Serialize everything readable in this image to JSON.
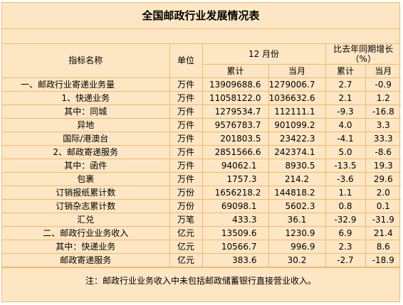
{
  "title": "全国邮政行业发展情况表",
  "headers": {
    "indicator": "指标名称",
    "unit": "单位",
    "month_group": "12 月份",
    "yoy_group": "比去年同期增长（%）",
    "cumulative": "累计",
    "current_month": "当月",
    "yoy_cumulative": "累计",
    "yoy_current_month": "当月"
  },
  "rows": [
    {
      "name": "一、邮政行业寄递业务量",
      "unit": "万件",
      "cumulative": "13909688.6",
      "month": "1279006.7",
      "yoy_cum": "2.7",
      "yoy_month": "-0.9"
    },
    {
      "name": "1、快递业务",
      "unit": "万件",
      "cumulative": "11058122.0",
      "month": "1036632.6",
      "yoy_cum": "2.1",
      "yoy_month": "1.2"
    },
    {
      "name": "其中：同城",
      "unit": "万件",
      "cumulative": "1279534.7",
      "month": "112111.1",
      "yoy_cum": "-9.3",
      "yoy_month": "-16.8"
    },
    {
      "name": "异地",
      "unit": "万件",
      "cumulative": "9576783.7",
      "month": "901099.2",
      "yoy_cum": "4.0",
      "yoy_month": "3.3"
    },
    {
      "name": "国际/港澳台",
      "unit": "万件",
      "cumulative": "201803.5",
      "month": "23422.3",
      "yoy_cum": "-4.1",
      "yoy_month": "33.3"
    },
    {
      "name": "2、邮政寄递服务",
      "unit": "万件",
      "cumulative": "2851566.6",
      "month": "242374.1",
      "yoy_cum": "5.0",
      "yoy_month": "-8.6"
    },
    {
      "name": "其中：函件",
      "unit": "万件",
      "cumulative": "94062.1",
      "month": "8930.5",
      "yoy_cum": "-13.5",
      "yoy_month": "19.3"
    },
    {
      "name": "包裹",
      "unit": "万件",
      "cumulative": "1757.3",
      "month": "214.2",
      "yoy_cum": "-3.6",
      "yoy_month": "29.6"
    },
    {
      "name": "订销报纸累计数",
      "unit": "万份",
      "cumulative": "1656218.2",
      "month": "144818.2",
      "yoy_cum": "1.1",
      "yoy_month": "2.0"
    },
    {
      "name": "订销杂志累计数",
      "unit": "万份",
      "cumulative": "69098.1",
      "month": "5602.3",
      "yoy_cum": "0.8",
      "yoy_month": "0.1"
    },
    {
      "name": "汇兑",
      "unit": "万笔",
      "cumulative": "433.3",
      "month": "36.1",
      "yoy_cum": "-32.9",
      "yoy_month": "-31.9"
    },
    {
      "name": "二、邮政行业业务收入",
      "unit": "亿元",
      "cumulative": "13509.6",
      "month": "1230.9",
      "yoy_cum": "6.9",
      "yoy_month": "21.4"
    },
    {
      "name": "其中：快递业务",
      "unit": "亿元",
      "cumulative": "10566.7",
      "month": "996.9",
      "yoy_cum": "2.3",
      "yoy_month": "8.6"
    },
    {
      "name": "邮政寄递服务",
      "unit": "亿元",
      "cumulative": "383.6",
      "month": "30.2",
      "yoy_cum": "-2.7",
      "yoy_month": "-18.9"
    }
  ],
  "note": "注：邮政行业业务收入中未包括邮政储蓄银行直接营业收入。",
  "colors": {
    "background": "#fde6c4",
    "border": "#f2b96a"
  }
}
